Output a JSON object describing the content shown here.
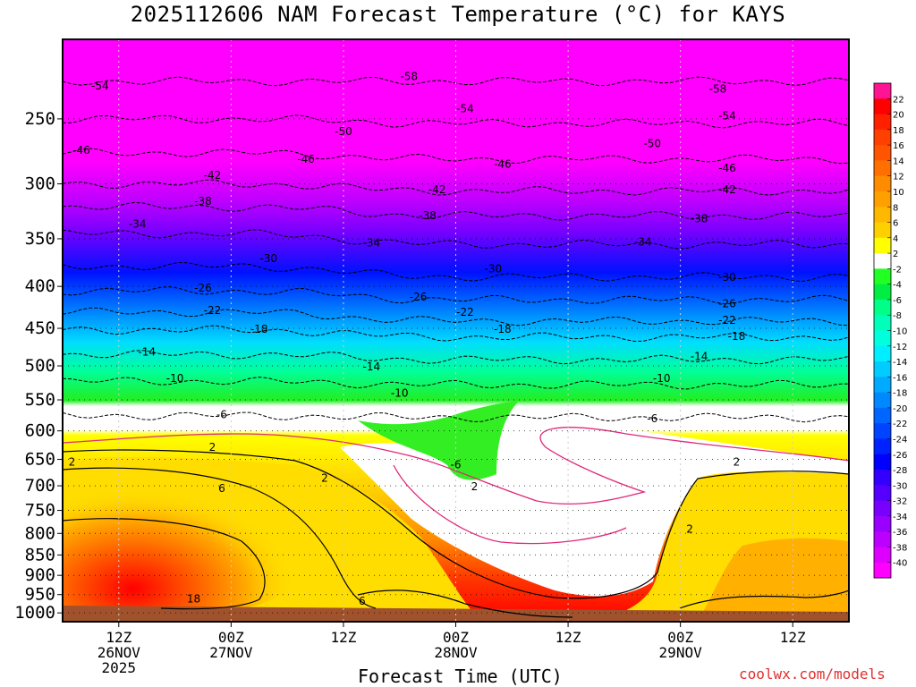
{
  "chart_data": {
    "type": "heatmap",
    "title": "2025112606 NAM Forecast Temperature (°C) for KAYS",
    "xlabel": "Forecast Time (UTC)",
    "ylabel": "",
    "x_ticks": [
      {
        "h": 6,
        "lines": [
          "12Z",
          "26NOV",
          "2025"
        ]
      },
      {
        "h": 18,
        "lines": [
          "00Z",
          "27NOV"
        ]
      },
      {
        "h": 30,
        "lines": [
          "12Z"
        ]
      },
      {
        "h": 42,
        "lines": [
          "00Z",
          "28NOV"
        ]
      },
      {
        "h": 54,
        "lines": [
          "12Z"
        ]
      },
      {
        "h": 66,
        "lines": [
          "00Z",
          "29NOV"
        ]
      },
      {
        "h": 78,
        "lines": [
          "12Z"
        ]
      }
    ],
    "xlim_hours": [
      0,
      84
    ],
    "y_ticks": [
      "250",
      "300",
      "350",
      "400",
      "450",
      "500",
      "550",
      "600",
      "650",
      "700",
      "750",
      "800",
      "850",
      "900",
      "950",
      "1000"
    ],
    "ylim": [
      1025,
      200
    ],
    "y_scale": "log",
    "colorbar": {
      "labels": [
        "22",
        "20",
        "18",
        "16",
        "14",
        "12",
        "10",
        "8",
        "6",
        "4",
        "2",
        "-2",
        "-4",
        "-6",
        "-8",
        "-10",
        "-12",
        "-14",
        "-16",
        "-18",
        "-20",
        "-22",
        "-24",
        "-26",
        "-28",
        "-30",
        "-32",
        "-34",
        "-36",
        "-38",
        "-40"
      ]
    },
    "contour_labels": [
      {
        "t": "-58",
        "h": 37,
        "p": 222
      },
      {
        "t": "-58",
        "h": 70,
        "p": 230
      },
      {
        "t": "-54",
        "h": 4,
        "p": 228
      },
      {
        "t": "-54",
        "h": 43,
        "p": 243
      },
      {
        "t": "-54",
        "h": 71,
        "p": 248
      },
      {
        "t": "-50",
        "h": 30,
        "p": 259
      },
      {
        "t": "-50",
        "h": 63,
        "p": 268
      },
      {
        "t": "-46",
        "h": 2,
        "p": 273
      },
      {
        "t": "-46",
        "h": 26,
        "p": 280
      },
      {
        "t": "-46",
        "h": 47,
        "p": 284
      },
      {
        "t": "-46",
        "h": 71,
        "p": 287
      },
      {
        "t": "-42",
        "h": 16,
        "p": 293
      },
      {
        "t": "-42",
        "h": 40,
        "p": 305
      },
      {
        "t": "-42",
        "h": 71,
        "p": 305
      },
      {
        "t": "-38",
        "h": 15,
        "p": 315
      },
      {
        "t": "-38",
        "h": 39,
        "p": 328
      },
      {
        "t": "-38",
        "h": 68,
        "p": 331
      },
      {
        "t": "-34",
        "h": 8,
        "p": 336
      },
      {
        "t": "-34",
        "h": 33,
        "p": 354
      },
      {
        "t": "-34",
        "h": 62,
        "p": 353
      },
      {
        "t": "-30",
        "h": 22,
        "p": 370
      },
      {
        "t": "-30",
        "h": 46,
        "p": 381
      },
      {
        "t": "-30",
        "h": 71,
        "p": 390
      },
      {
        "t": "-26",
        "h": 15,
        "p": 402
      },
      {
        "t": "-26",
        "h": 38,
        "p": 412
      },
      {
        "t": "-26",
        "h": 71,
        "p": 420
      },
      {
        "t": "-22",
        "h": 16,
        "p": 428
      },
      {
        "t": "-22",
        "h": 43,
        "p": 430
      },
      {
        "t": "-22",
        "h": 71,
        "p": 440
      },
      {
        "t": "-18",
        "h": 21,
        "p": 451
      },
      {
        "t": "-18",
        "h": 47,
        "p": 451
      },
      {
        "t": "-18",
        "h": 72,
        "p": 460
      },
      {
        "t": "-14",
        "h": 9,
        "p": 481
      },
      {
        "t": "-14",
        "h": 33,
        "p": 501
      },
      {
        "t": "-14",
        "h": 68,
        "p": 487
      },
      {
        "t": "-10",
        "h": 12,
        "p": 518
      },
      {
        "t": "-10",
        "h": 36,
        "p": 540
      },
      {
        "t": "-10",
        "h": 64,
        "p": 518
      },
      {
        "t": "-6",
        "h": 17,
        "p": 573
      },
      {
        "t": "-6",
        "h": 63,
        "p": 580
      },
      {
        "t": "-6",
        "h": 42,
        "p": 660
      },
      {
        "t": "2",
        "h": 1,
        "p": 655
      },
      {
        "t": "2",
        "h": 16,
        "p": 628
      },
      {
        "t": "2",
        "h": 28,
        "p": 685
      },
      {
        "t": "2",
        "h": 44,
        "p": 702
      },
      {
        "t": "2",
        "h": 72,
        "p": 655
      },
      {
        "t": "2",
        "h": 67,
        "p": 790
      },
      {
        "t": "6",
        "h": 17,
        "p": 705
      },
      {
        "t": "6",
        "h": 32,
        "p": 968
      },
      {
        "t": "18",
        "h": 14,
        "p": 962
      }
    ]
  },
  "xlabel": "Forecast Time (UTC)",
  "credit": "coolwx.com/models"
}
